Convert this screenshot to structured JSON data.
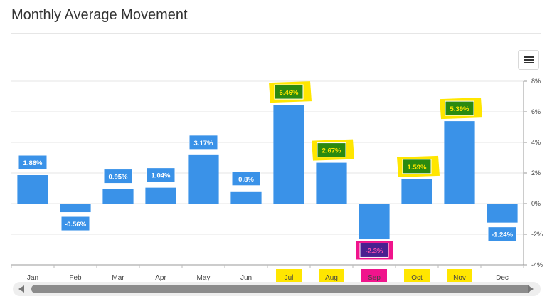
{
  "title": "Monthly Average Movement",
  "colors": {
    "bar": "#3a92e8",
    "highlight_yellow": "#ffe600",
    "highlight_magenta": "#f0148c",
    "green_box": "#2a8a10",
    "purple_box": "#4a2090"
  },
  "icons": {
    "menu": "hamburger-menu-icon"
  },
  "chart_data": {
    "type": "bar",
    "title": "Monthly Average Movement",
    "categories": [
      "Jan",
      "Feb",
      "Mar",
      "Apr",
      "May",
      "Jun",
      "Jul",
      "Aug",
      "Sep",
      "Oct",
      "Nov",
      "Dec"
    ],
    "values": [
      1.86,
      -0.56,
      0.95,
      1.04,
      3.17,
      0.8,
      6.46,
      2.67,
      -2.3,
      1.59,
      5.39,
      -1.24
    ],
    "data_labels": [
      "1.86%",
      "-0.56%",
      "0.95%",
      "1.04%",
      "3.17%",
      "0.8%",
      "6.46%",
      "2.67%",
      "-2.3%",
      "1.59%",
      "5.39%",
      "-1.24%"
    ],
    "yaxis_position": "right",
    "ylim": [
      -4,
      8
    ],
    "yticks": [
      8,
      6,
      4,
      2,
      0,
      -2,
      -4
    ],
    "ytick_labels": [
      "8%",
      "6%",
      "4%",
      "2%",
      "0%",
      "-2%",
      "-4%"
    ],
    "grid": true,
    "highlighted_yellow": [
      "Jul",
      "Aug",
      "Oct",
      "Nov"
    ],
    "highlighted_magenta": [
      "Sep"
    ]
  }
}
